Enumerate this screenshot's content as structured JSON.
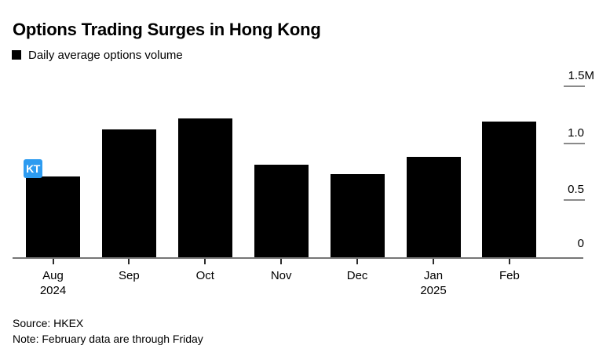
{
  "header": {
    "title": "Options Trading Surges in Hong Kong",
    "legend": {
      "swatch_color": "#000000",
      "label": "Daily average options volume"
    }
  },
  "chart_data": {
    "type": "bar",
    "title": "Options Trading Surges in Hong Kong",
    "legend": "Daily average options volume",
    "unit": "M contracts (millions)",
    "categories": [
      "Aug",
      "Sep",
      "Oct",
      "Nov",
      "Dec",
      "Jan",
      "Feb"
    ],
    "category_sublabels": {
      "Aug": "2024",
      "Jan": "2025"
    },
    "values": [
      0.71,
      1.12,
      1.22,
      0.81,
      0.73,
      0.88,
      1.19
    ],
    "ylim": [
      0,
      1.5
    ],
    "yticks": [
      {
        "value": 1.5,
        "label": "1.5M"
      },
      {
        "value": 1.0,
        "label": "1.0"
      },
      {
        "value": 0.5,
        "label": "0.5"
      },
      {
        "value": 0.0,
        "label": "0"
      }
    ],
    "bar_color": "#000000",
    "axis_side": "right",
    "grid": false
  },
  "cursor_badge": {
    "text": "KT",
    "color": "#2d9bf0"
  },
  "footer": {
    "source": "Source: HKEX",
    "note": "Note: February data are through Friday"
  }
}
